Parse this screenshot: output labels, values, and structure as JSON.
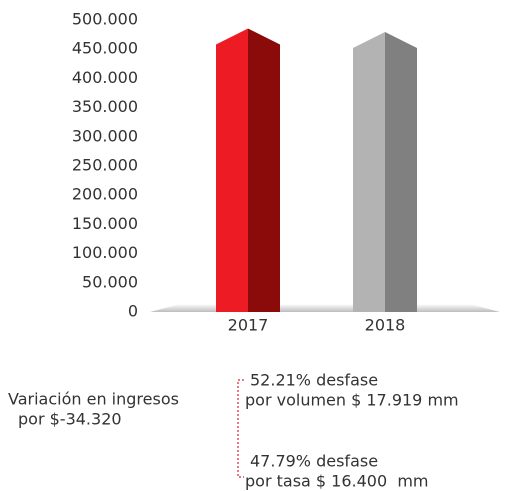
{
  "chart_data": {
    "type": "bar",
    "categories": [
      "2017",
      "2018"
    ],
    "values": [
      458000,
      452000
    ],
    "colors": [
      "#ed1c24",
      "#b3b3b3"
    ],
    "side_colors": [
      "#8b0a0a",
      "#808080"
    ],
    "ylim": [
      0,
      500000
    ],
    "yticks": [
      0,
      {
        "value": 50000,
        "label": "50.000"
      },
      {
        "value": 100000,
        "label": "100.000"
      },
      {
        "value": 150000,
        "label": "150.000"
      },
      {
        "value": 200000,
        "label": "200.000"
      },
      {
        "value": 250000,
        "label": "250.000"
      },
      {
        "value": 300000,
        "label": "300.000"
      },
      {
        "value": 350000,
        "label": "350.000"
      },
      {
        "value": 400000,
        "label": "400.000"
      },
      {
        "value": 450000,
        "label": "450.000"
      },
      {
        "value": 500000,
        "label": "500.000"
      }
    ],
    "grid": false,
    "annotations": [
      "Variación en ingresos",
      "por $-34.320",
      "52.21% desfase",
      "por volumen $ 17.919 mm",
      "47.79% desfase",
      "por tasa $ 16.400  mm"
    ]
  }
}
